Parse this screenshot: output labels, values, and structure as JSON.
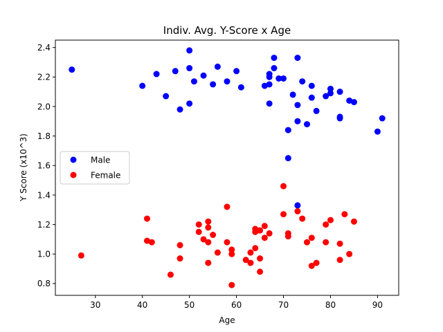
{
  "chart_data": {
    "type": "scatter",
    "title": "Indiv. Avg. Y-Score x Age",
    "xlabel": "Age",
    "ylabel": "Y Score (x10^3)",
    "xlim": [
      21.5,
      94.5
    ],
    "ylim": [
      0.72,
      2.45
    ],
    "xticks": [
      30,
      40,
      50,
      60,
      70,
      80,
      90
    ],
    "yticks": [
      0.8,
      1.0,
      1.2,
      1.4,
      1.6,
      1.8,
      2.0,
      2.2,
      2.4
    ],
    "grid": false,
    "legend_position": "center-left",
    "series": [
      {
        "name": "Male",
        "color": "#0000ff",
        "points": [
          [
            25,
            2.25
          ],
          [
            40,
            2.14
          ],
          [
            43,
            2.22
          ],
          [
            45,
            2.07
          ],
          [
            47,
            2.24
          ],
          [
            48,
            1.98
          ],
          [
            50,
            2.38
          ],
          [
            50,
            2.26
          ],
          [
            50,
            2.02
          ],
          [
            51,
            2.17
          ],
          [
            53,
            2.21
          ],
          [
            55,
            2.15
          ],
          [
            56,
            2.27
          ],
          [
            58,
            2.17
          ],
          [
            60,
            2.24
          ],
          [
            61,
            2.13
          ],
          [
            66,
            2.14
          ],
          [
            67,
            2.22
          ],
          [
            67,
            2.2
          ],
          [
            67,
            2.15
          ],
          [
            67,
            2.02
          ],
          [
            68,
            2.33
          ],
          [
            68,
            2.26
          ],
          [
            69,
            2.19
          ],
          [
            70,
            2.19
          ],
          [
            71,
            1.84
          ],
          [
            71,
            1.65
          ],
          [
            72,
            2.08
          ],
          [
            73,
            2.33
          ],
          [
            73,
            2.01
          ],
          [
            73,
            1.9
          ],
          [
            73,
            1.33
          ],
          [
            74,
            2.17
          ],
          [
            75,
            1.88
          ],
          [
            76,
            2.14
          ],
          [
            76,
            2.06
          ],
          [
            77,
            1.97
          ],
          [
            79,
            2.07
          ],
          [
            80,
            2.12
          ],
          [
            80,
            2.09
          ],
          [
            82,
            2.1
          ],
          [
            82,
            1.93
          ],
          [
            82,
            1.92
          ],
          [
            84,
            2.04
          ],
          [
            85,
            2.03
          ],
          [
            90,
            1.83
          ],
          [
            91,
            1.92
          ]
        ]
      },
      {
        "name": "Female",
        "color": "#ff0000",
        "points": [
          [
            27,
            0.99
          ],
          [
            41,
            1.24
          ],
          [
            41,
            1.09
          ],
          [
            42,
            1.08
          ],
          [
            46,
            0.86
          ],
          [
            48,
            1.06
          ],
          [
            48,
            0.97
          ],
          [
            52,
            1.2
          ],
          [
            52,
            1.15
          ],
          [
            53,
            1.1
          ],
          [
            54,
            1.22
          ],
          [
            54,
            1.18
          ],
          [
            54,
            1.08
          ],
          [
            54,
            0.94
          ],
          [
            55,
            1.13
          ],
          [
            56,
            1.01
          ],
          [
            58,
            1.32
          ],
          [
            58,
            1.08
          ],
          [
            59,
            1.03
          ],
          [
            59,
            1.0
          ],
          [
            59,
            0.79
          ],
          [
            62,
            0.96
          ],
          [
            63,
            1.01
          ],
          [
            63,
            0.94
          ],
          [
            64,
            1.17
          ],
          [
            64,
            1.15
          ],
          [
            64,
            1.04
          ],
          [
            65,
            1.16
          ],
          [
            65,
            0.97
          ],
          [
            65,
            0.88
          ],
          [
            66,
            1.19
          ],
          [
            66,
            1.11
          ],
          [
            67,
            1.14
          ],
          [
            70,
            1.46
          ],
          [
            70,
            1.27
          ],
          [
            71,
            1.14
          ],
          [
            71,
            1.12
          ],
          [
            73,
            1.29
          ],
          [
            74,
            1.24
          ],
          [
            75,
            1.08
          ],
          [
            76,
            1.11
          ],
          [
            76,
            0.92
          ],
          [
            77,
            0.94
          ],
          [
            79,
            1.2
          ],
          [
            79,
            1.08
          ],
          [
            80,
            1.23
          ],
          [
            82,
            1.07
          ],
          [
            82,
            0.96
          ],
          [
            83,
            1.27
          ],
          [
            84,
            1.0
          ],
          [
            85,
            1.22
          ]
        ]
      }
    ]
  }
}
